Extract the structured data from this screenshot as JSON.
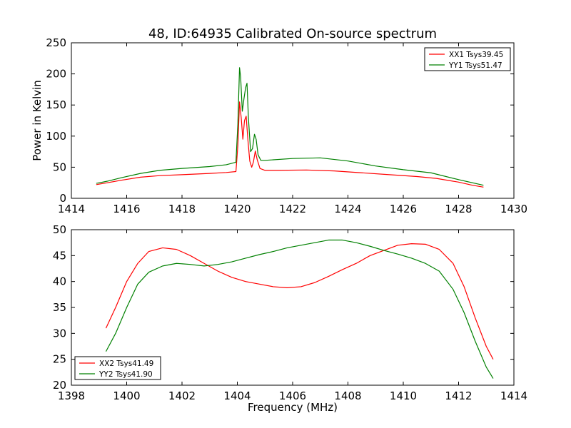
{
  "figure": {
    "title": "48, ID:64935 Calibrated On-source spectrum",
    "xlabel": "Frequency (MHz)",
    "top_ylabel": "Power in Kelvin"
  },
  "colors": {
    "red": "#ff0000",
    "green": "#008000"
  },
  "chart_data": [
    {
      "type": "line",
      "title": "48, ID:64935 Calibrated On-source spectrum",
      "xlabel": "",
      "ylabel": "Power in Kelvin",
      "xlim": [
        1414,
        1430
      ],
      "ylim": [
        0,
        250
      ],
      "xticks": [
        1414,
        1416,
        1418,
        1420,
        1422,
        1424,
        1426,
        1428,
        1430
      ],
      "yticks": [
        0,
        50,
        100,
        150,
        200,
        250
      ],
      "legend_position": "top-right",
      "series": [
        {
          "name": "XX1 Tsys39.45",
          "color": "#ff0000",
          "points": [
            [
              1414.9,
              22
            ],
            [
              1415.3,
              25
            ],
            [
              1415.8,
              29
            ],
            [
              1416.5,
              34
            ],
            [
              1417.2,
              36.5
            ],
            [
              1418,
              38
            ],
            [
              1419,
              40
            ],
            [
              1419.6,
              41.5
            ],
            [
              1419.95,
              43
            ],
            [
              1420.02,
              85
            ],
            [
              1420.08,
              155
            ],
            [
              1420.14,
              130
            ],
            [
              1420.2,
              95
            ],
            [
              1420.26,
              125
            ],
            [
              1420.32,
              132
            ],
            [
              1420.38,
              95
            ],
            [
              1420.45,
              60
            ],
            [
              1420.52,
              50
            ],
            [
              1420.58,
              58
            ],
            [
              1420.65,
              76
            ],
            [
              1420.72,
              62
            ],
            [
              1420.82,
              48
            ],
            [
              1421,
              45
            ],
            [
              1421.5,
              45
            ],
            [
              1422.5,
              45.5
            ],
            [
              1423.5,
              44
            ],
            [
              1424.5,
              41
            ],
            [
              1425.5,
              38
            ],
            [
              1426.5,
              35
            ],
            [
              1427.2,
              32
            ],
            [
              1428,
              26
            ],
            [
              1428.5,
              21
            ],
            [
              1428.9,
              18
            ]
          ]
        },
        {
          "name": "YY1 Tsys51.47",
          "color": "#008000",
          "points": [
            [
              1414.9,
              24
            ],
            [
              1415.3,
              27.5
            ],
            [
              1415.8,
              33
            ],
            [
              1416.5,
              40
            ],
            [
              1417.2,
              45
            ],
            [
              1418,
              48
            ],
            [
              1419,
              51
            ],
            [
              1419.6,
              54
            ],
            [
              1419.95,
              58
            ],
            [
              1420.02,
              120
            ],
            [
              1420.08,
              210
            ],
            [
              1420.12,
              195
            ],
            [
              1420.18,
              140
            ],
            [
              1420.24,
              160
            ],
            [
              1420.3,
              178
            ],
            [
              1420.35,
              185
            ],
            [
              1420.4,
              130
            ],
            [
              1420.48,
              75
            ],
            [
              1420.55,
              80
            ],
            [
              1420.62,
              103
            ],
            [
              1420.68,
              95
            ],
            [
              1420.75,
              70
            ],
            [
              1420.85,
              61
            ],
            [
              1421,
              61
            ],
            [
              1422,
              64
            ],
            [
              1423,
              65
            ],
            [
              1424,
              60
            ],
            [
              1425,
              52
            ],
            [
              1426,
              46
            ],
            [
              1427,
              41
            ],
            [
              1428,
              30
            ],
            [
              1428.9,
              21
            ]
          ]
        }
      ]
    },
    {
      "type": "line",
      "title": "",
      "xlabel": "Frequency (MHz)",
      "ylabel": "",
      "xlim": [
        1398,
        1414
      ],
      "ylim": [
        20,
        50
      ],
      "xticks": [
        1398,
        1400,
        1402,
        1404,
        1406,
        1408,
        1410,
        1412,
        1414
      ],
      "yticks": [
        20,
        25,
        30,
        35,
        40,
        45,
        50
      ],
      "legend_position": "bottom-left",
      "series": [
        {
          "name": "XX2 Tsys41.49",
          "color": "#ff0000",
          "points": [
            [
              1399.25,
              31
            ],
            [
              1399.6,
              35
            ],
            [
              1400,
              40
            ],
            [
              1400.4,
              43.5
            ],
            [
              1400.8,
              45.8
            ],
            [
              1401.3,
              46.5
            ],
            [
              1401.8,
              46.2
            ],
            [
              1402.3,
              45
            ],
            [
              1402.8,
              43.5
            ],
            [
              1403.3,
              42
            ],
            [
              1403.8,
              40.8
            ],
            [
              1404.3,
              40
            ],
            [
              1404.8,
              39.5
            ],
            [
              1405.3,
              39
            ],
            [
              1405.8,
              38.8
            ],
            [
              1406.3,
              39
            ],
            [
              1406.8,
              39.8
            ],
            [
              1407.3,
              41
            ],
            [
              1407.8,
              42.3
            ],
            [
              1408.3,
              43.5
            ],
            [
              1408.8,
              45
            ],
            [
              1409.3,
              46
            ],
            [
              1409.8,
              47
            ],
            [
              1410.3,
              47.3
            ],
            [
              1410.8,
              47.2
            ],
            [
              1411.3,
              46.2
            ],
            [
              1411.8,
              43.5
            ],
            [
              1412.2,
              39
            ],
            [
              1412.6,
              33
            ],
            [
              1413,
              27.5
            ],
            [
              1413.25,
              25
            ]
          ]
        },
        {
          "name": "YY2 Tsys41.90",
          "color": "#008000",
          "points": [
            [
              1399.25,
              26.5
            ],
            [
              1399.6,
              30
            ],
            [
              1400,
              35
            ],
            [
              1400.4,
              39.5
            ],
            [
              1400.8,
              41.8
            ],
            [
              1401.3,
              43
            ],
            [
              1401.8,
              43.5
            ],
            [
              1402.3,
              43.3
            ],
            [
              1402.8,
              43
            ],
            [
              1403.3,
              43.3
            ],
            [
              1403.8,
              43.8
            ],
            [
              1404.3,
              44.5
            ],
            [
              1404.8,
              45.2
            ],
            [
              1405.3,
              45.8
            ],
            [
              1405.8,
              46.5
            ],
            [
              1406.3,
              47
            ],
            [
              1406.8,
              47.5
            ],
            [
              1407.3,
              48
            ],
            [
              1407.8,
              48
            ],
            [
              1408.3,
              47.5
            ],
            [
              1408.8,
              46.8
            ],
            [
              1409.3,
              46
            ],
            [
              1409.8,
              45.3
            ],
            [
              1410.3,
              44.5
            ],
            [
              1410.8,
              43.5
            ],
            [
              1411.3,
              42
            ],
            [
              1411.8,
              38.5
            ],
            [
              1412.2,
              34
            ],
            [
              1412.6,
              28.5
            ],
            [
              1413,
              23.5
            ],
            [
              1413.25,
              21.3
            ]
          ]
        }
      ]
    }
  ]
}
